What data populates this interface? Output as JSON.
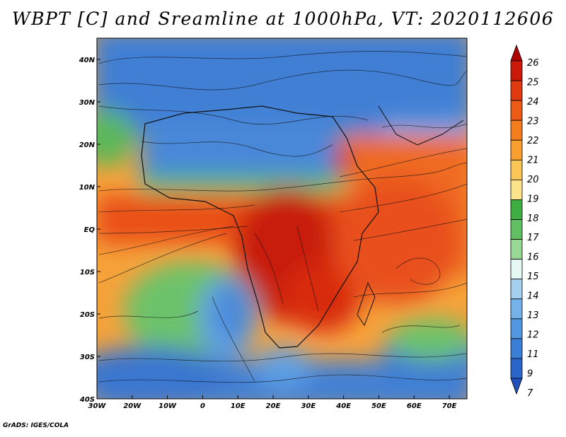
{
  "title": "WBPT [C] and Sreamline at 1000hPa, VT: 2020112606",
  "credit": "GrADS: IGES/COLA",
  "map": {
    "variable": "WBPT",
    "units": "C",
    "level": "1000hPa",
    "valid_time": "2020112606",
    "lon_range": [
      -30,
      75
    ],
    "lat_range": [
      -40,
      45
    ],
    "lat_ticks": [
      {
        "value": 40,
        "label": "40N"
      },
      {
        "value": 30,
        "label": "30N"
      },
      {
        "value": 20,
        "label": "20N"
      },
      {
        "value": 10,
        "label": "10N"
      },
      {
        "value": 0,
        "label": "EQ"
      },
      {
        "value": -10,
        "label": "10S"
      },
      {
        "value": -20,
        "label": "20S"
      },
      {
        "value": -30,
        "label": "30S"
      },
      {
        "value": -40,
        "label": "40S"
      }
    ],
    "lon_ticks": [
      {
        "value": -30,
        "label": "30W"
      },
      {
        "value": -20,
        "label": "20W"
      },
      {
        "value": -10,
        "label": "10W"
      },
      {
        "value": 0,
        "label": "0"
      },
      {
        "value": 10,
        "label": "10E"
      },
      {
        "value": 20,
        "label": "20E"
      },
      {
        "value": 30,
        "label": "30E"
      },
      {
        "value": 40,
        "label": "40E"
      },
      {
        "value": 50,
        "label": "50E"
      },
      {
        "value": 60,
        "label": "60E"
      },
      {
        "value": 70,
        "label": "70E"
      }
    ]
  },
  "colorbar": {
    "levels": [
      "26",
      "25",
      "24",
      "23",
      "22",
      "21",
      "20",
      "19",
      "18",
      "17",
      "16",
      "15",
      "14",
      "13",
      "12",
      "11",
      "9",
      "7"
    ],
    "colors": [
      "#b00000",
      "#cc1a0a",
      "#e03a10",
      "#ec5a18",
      "#f47e1e",
      "#f9a030",
      "#fbc658",
      "#fbe48c",
      "#3fae42",
      "#62c062",
      "#98d894",
      "#e6f8f4",
      "#a6d0f0",
      "#76b2ea",
      "#5298e0",
      "#3a7ed6",
      "#2a66ca",
      "#1f4fbd"
    ]
  }
}
